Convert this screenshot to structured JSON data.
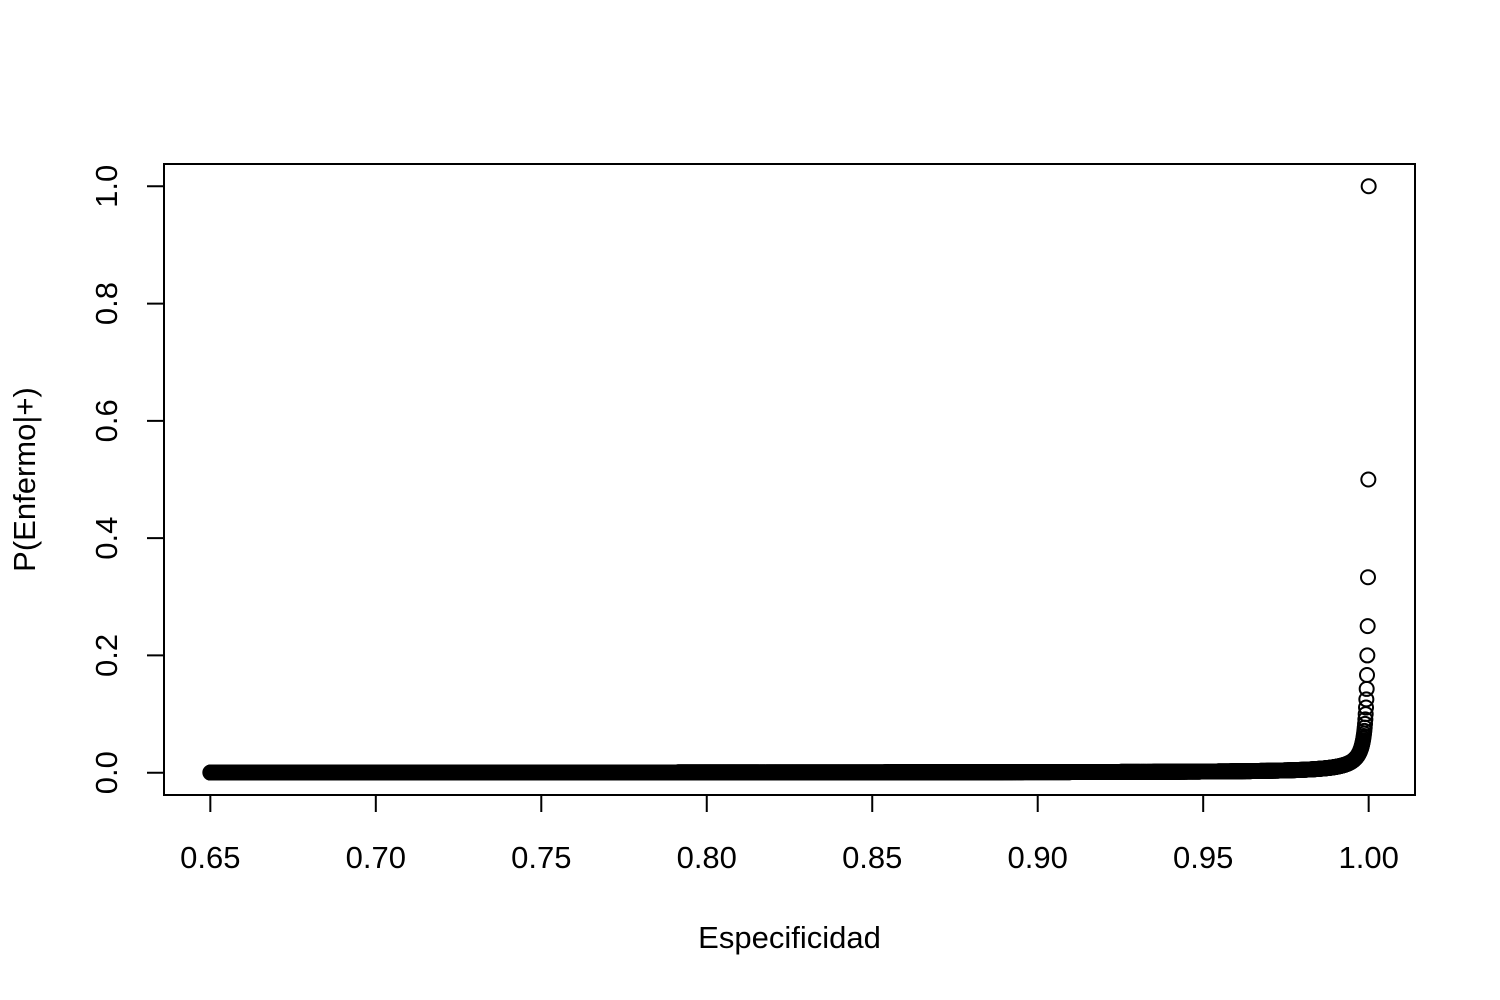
{
  "chart_data": {
    "type": "scatter",
    "title": "",
    "xlabel": "Especificidad",
    "ylabel": "P(Enfermo|+)",
    "xlim": [
      0.636,
      1.014
    ],
    "ylim": [
      -0.038,
      1.038
    ],
    "x_ticks": [
      "0.65",
      "0.70",
      "0.75",
      "0.80",
      "0.85",
      "0.90",
      "0.95",
      "1.00"
    ],
    "y_ticks": [
      "0.0",
      "0.2",
      "0.4",
      "0.6",
      "0.8",
      "1.0"
    ],
    "grid": false,
    "legend": "none",
    "marker": "open-circle",
    "color": "#000000",
    "series": [
      {
        "model": "P(Enfermo|+) = 0.0001 / (0.0001 + 0.9999 * (1 - Especificidad)), sensitivity = 1",
        "x_start": 0.65,
        "x_end": 1.0,
        "x_step": 0.0001,
        "sample_points": [
          {
            "x": 0.65,
            "y": 0.0003
          },
          {
            "x": 0.9,
            "y": 0.001
          },
          {
            "x": 0.95,
            "y": 0.002
          },
          {
            "x": 0.99,
            "y": 0.0099
          },
          {
            "x": 0.999,
            "y": 0.091
          },
          {
            "x": 0.9996,
            "y": 0.2
          },
          {
            "x": 0.9997,
            "y": 0.25
          },
          {
            "x": 0.9998,
            "y": 0.333
          },
          {
            "x": 0.9999,
            "y": 0.5
          },
          {
            "x": 1.0,
            "y": 1.0
          }
        ]
      }
    ]
  }
}
